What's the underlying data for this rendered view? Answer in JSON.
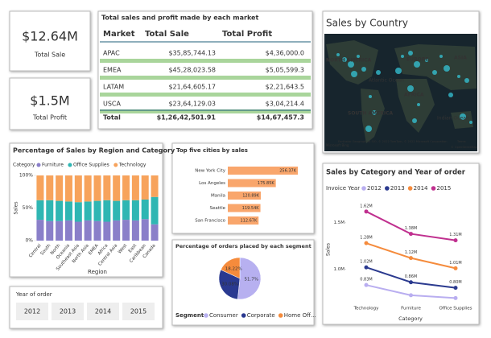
{
  "cards": [
    {
      "value": "$12.64M",
      "label": "Total Sale"
    },
    {
      "value": "$1.5M",
      "label": "Total Profit"
    }
  ],
  "table": {
    "title": "Total sales and profit made by each market",
    "columns": [
      "Market",
      "Total Sale",
      "Total Profit"
    ],
    "rows": [
      [
        "APAC",
        "$35,85,744.13",
        "$4,36,000.0"
      ],
      [
        "EMEA",
        "$45,28,023.58",
        "$5,05,599.3"
      ],
      [
        "LATAM",
        "$21,64,605.17",
        "$2,21,643.5"
      ],
      [
        "USCA",
        "$23,64,129.03",
        "$3,04,214.4"
      ]
    ],
    "total": [
      "Total",
      "$1,26,42,501.91",
      "$14,67,457.3"
    ]
  },
  "map": {
    "title": "Sales by Country",
    "labels": [
      "NORTH AMERICA",
      "EUROPE",
      "ASIA",
      "Atlantic Ocean",
      "AFRICA",
      "SOUTH AMERICA",
      "Indian Ocean"
    ],
    "credit": "Earthstar Geographics SIO, © 2022 TomTom, © 2022 Microsoft Corporation",
    "terms": "Terms",
    "osm": "© OpenStreetMap",
    "logo": "Microsoft Bing"
  },
  "slicer": {
    "title": "Year of order",
    "items": [
      "2012",
      "2013",
      "2014",
      "2015"
    ]
  },
  "chart_data": [
    {
      "type": "stacked100",
      "title": "Percentage of Sales by Region and Category",
      "legend_title": "Category",
      "x_label": "Region",
      "y_label": "Sales",
      "categories": [
        "Central",
        "South",
        "North",
        "Oceania",
        "Southeast Asia",
        "North Asia",
        "EMEA",
        "Africa",
        "Central Asia",
        "West",
        "East",
        "Caribbean",
        "Canada"
      ],
      "series": [
        {
          "name": "Furniture",
          "color": "#8a7fc9",
          "values": [
            32,
            30,
            30,
            31,
            29,
            31,
            30,
            29,
            31,
            32,
            31,
            33,
            25
          ]
        },
        {
          "name": "Office Supplies",
          "color": "#2fb6b3",
          "values": [
            30,
            32,
            31,
            29,
            30,
            29,
            31,
            33,
            30,
            30,
            31,
            30,
            42
          ]
        },
        {
          "name": "Technology",
          "color": "#f7a35c",
          "values": [
            38,
            38,
            39,
            40,
            41,
            40,
            39,
            38,
            39,
            38,
            38,
            37,
            33
          ]
        }
      ],
      "ylim": [
        0,
        100
      ],
      "yticks": [
        {
          "value": 0,
          "label": "0%"
        },
        {
          "value": 50,
          "label": "50%"
        },
        {
          "value": 100,
          "label": "100%"
        }
      ]
    },
    {
      "type": "hbar",
      "title": "Top five cities by sales",
      "categories": [
        "New York City",
        "Los Angeles",
        "Manila",
        "Seattle",
        "San Francisco"
      ],
      "values": [
        256.37,
        175.85,
        120.89,
        119.54,
        112.67
      ],
      "value_labels": [
        "256.37K",
        "175.85K",
        "120.89K",
        "119.54K",
        "112.67K"
      ],
      "color": "#f9a66c"
    },
    {
      "type": "pie",
      "title": "Percentage of orders placed by each segment",
      "legend_title": "Segment",
      "categories": [
        "Consumer",
        "Corporate",
        "Home Off..."
      ],
      "values": [
        51.7,
        30.08,
        18.22
      ],
      "value_labels": [
        "51.7%",
        "30.08%",
        "18.22%"
      ],
      "colors": [
        "#b7b0f0",
        "#2a3990",
        "#f58b3c"
      ]
    },
    {
      "type": "line",
      "title": "Sales by Category and Year of order",
      "legend_title": "Invoice Year",
      "x_label": "Category",
      "y_label": "Sales",
      "categories": [
        "Technology",
        "Furniture",
        "Office Supplies"
      ],
      "series": [
        {
          "name": "2012",
          "color": "#b9aef0",
          "values": [
            830000,
            720000,
            690000
          ],
          "value_labels": [
            "0.83M",
            null,
            null
          ]
        },
        {
          "name": "2013",
          "color": "#2b3a8f",
          "values": [
            1020000,
            860000,
            800000
          ],
          "value_labels": [
            "1.02M",
            "0.86M",
            "0.80M"
          ]
        },
        {
          "name": "2014",
          "color": "#f58b3c",
          "values": [
            1280000,
            1120000,
            1010000
          ],
          "value_labels": [
            "1.28M",
            "1.12M",
            "1.01M"
          ]
        },
        {
          "name": "2015",
          "color": "#c0308f",
          "values": [
            1620000,
            1380000,
            1310000
          ],
          "value_labels": [
            "1.62M",
            "1.38M",
            "1.31M"
          ]
        }
      ],
      "ylim": [
        650000,
        1800000
      ],
      "yticks": [
        {
          "value": 1000000,
          "label": "1.0M"
        },
        {
          "value": 1500000,
          "label": "1.5M"
        }
      ]
    }
  ]
}
